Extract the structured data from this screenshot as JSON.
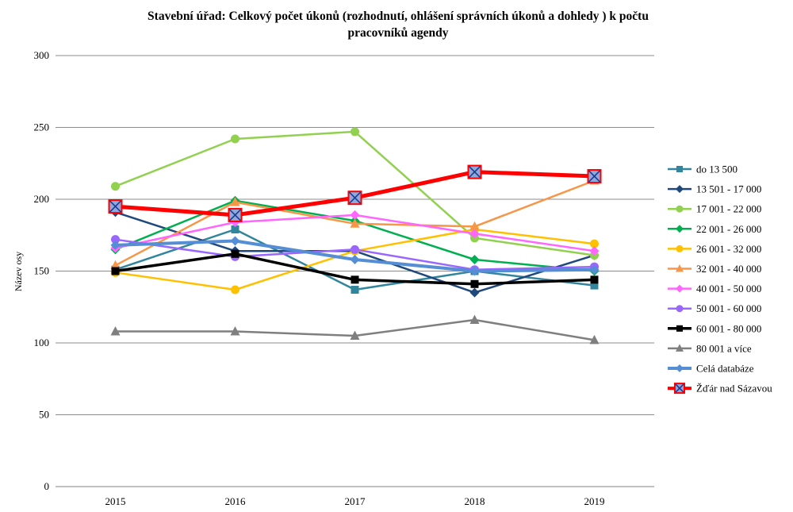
{
  "chart_data": {
    "type": "line",
    "title_lines": [
      "Stavební úřad: Celkový počet úkonů (rozhodnutí, ohlášení správních úkonů a dohledy ) k počtu",
      "pracovníků agendy"
    ],
    "ylabel": "Název osy",
    "xlabel": "",
    "x": [
      "2015",
      "2016",
      "2017",
      "2018",
      "2019"
    ],
    "ylim": [
      0,
      300
    ],
    "yticks": [
      0,
      50,
      100,
      150,
      200,
      250,
      300
    ],
    "grid": true,
    "legend_position": "right",
    "series": [
      {
        "name": "do 13 500",
        "color": "#31859C",
        "marker": "square",
        "width": 2.5,
        "values": [
          151,
          179,
          137,
          150,
          140
        ]
      },
      {
        "name": "13 501 - 17 000",
        "color": "#1F497D",
        "marker": "diamond",
        "width": 2.5,
        "values": [
          191,
          164,
          164,
          135,
          161
        ]
      },
      {
        "name": "17 001 - 22 000",
        "color": "#92D050",
        "marker": "circle",
        "width": 2.5,
        "values": [
          209,
          242,
          247,
          173,
          161
        ]
      },
      {
        "name": "22 001 - 26 000",
        "color": "#00B050",
        "marker": "diamond",
        "width": 2.5,
        "values": [
          165,
          199,
          185,
          158,
          150
        ]
      },
      {
        "name": "26 001 - 32 000",
        "color": "#FFC000",
        "marker": "circle",
        "width": 2.5,
        "values": [
          149,
          137,
          164,
          179,
          169
        ]
      },
      {
        "name": "32 001 - 40 000",
        "color": "#F79646",
        "marker": "triangle",
        "width": 2.5,
        "values": [
          154,
          198,
          183,
          181,
          213
        ]
      },
      {
        "name": "40 001 - 50 000",
        "color": "#FF66FF",
        "marker": "diamond",
        "width": 2.5,
        "values": [
          166,
          184,
          189,
          176,
          164
        ]
      },
      {
        "name": "50 001 - 60 000",
        "color": "#9966FF",
        "marker": "circle",
        "width": 2.5,
        "values": [
          172,
          160,
          165,
          151,
          153
        ]
      },
      {
        "name": "60 001 - 80 000",
        "color": "#000000",
        "marker": "square",
        "width": 3.5,
        "values": [
          150,
          162,
          144,
          141,
          144
        ]
      },
      {
        "name": "80 001 a více",
        "color": "#7F7F7F",
        "marker": "triangle",
        "width": 2.5,
        "values": [
          108,
          108,
          105,
          116,
          102
        ]
      },
      {
        "name": "Celá databáze",
        "color": "#558ED5",
        "marker": "diamond",
        "width": 4,
        "values": [
          168,
          171,
          158,
          150,
          151
        ]
      },
      {
        "name": "Žďár nad Sázavou",
        "color": "#FF0000",
        "marker": "xsquare",
        "width": 5,
        "values": [
          195,
          189,
          201,
          219,
          216
        ]
      }
    ]
  }
}
